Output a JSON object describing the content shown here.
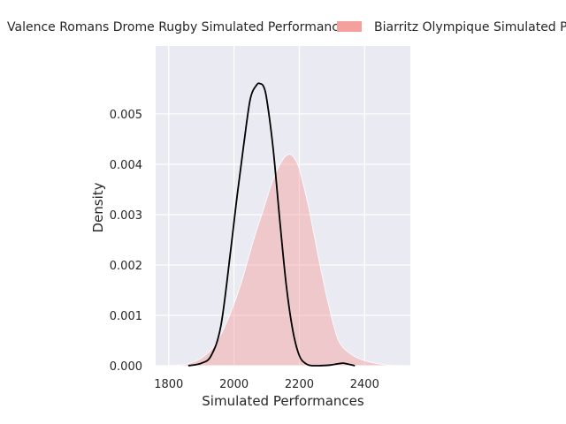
{
  "chart_data": {
    "type": "area",
    "title": "",
    "xlabel": "Simulated Performances",
    "ylabel": "Density",
    "xlim": [
      1760,
      2540
    ],
    "ylim": [
      0,
      0.00635
    ],
    "x_ticks": [
      1800,
      2000,
      2200,
      2400
    ],
    "x_tick_labels": [
      "1800",
      "2000",
      "2200",
      "2400"
    ],
    "y_ticks": [
      0,
      0.001,
      0.002,
      0.003,
      0.004,
      0.005
    ],
    "y_tick_labels": [
      "0.000",
      "0.001",
      "0.002",
      "0.003",
      "0.004",
      "0.005"
    ],
    "grid": true,
    "legend_position": "top",
    "series": [
      {
        "name": "Valence Romans Drome Rugby Simulated Performances",
        "style": "line",
        "color": "#000000",
        "x": [
          1860,
          1900,
          1930,
          1960,
          1990,
          2010,
          2030,
          2050,
          2070,
          2080,
          2090,
          2100,
          2120,
          2140,
          2160,
          2180,
          2200,
          2220,
          2240,
          2260,
          2290,
          2320,
          2335,
          2350,
          2370
        ],
        "y": [
          0.0,
          5e-05,
          0.0002,
          0.0008,
          0.0023,
          0.0034,
          0.0044,
          0.0053,
          0.00558,
          0.0056,
          0.00555,
          0.0053,
          0.0043,
          0.0029,
          0.0016,
          0.0007,
          0.0002,
          4e-05,
          0.0,
          0.0,
          1e-05,
          4e-05,
          5e-05,
          3e-05,
          0.0
        ]
      },
      {
        "name": "Biarritz Olympique Simulated Performances",
        "style": "fill",
        "color": "#f4a09c",
        "x": [
          1780,
          1820,
          1860,
          1900,
          1940,
          1980,
          2020,
          2060,
          2090,
          2120,
          2150,
          2170,
          2185,
          2200,
          2230,
          2260,
          2290,
          2320,
          2360,
          2400,
          2440,
          2480,
          2520
        ],
        "y": [
          0.0,
          1e-05,
          4e-05,
          0.00015,
          0.0004,
          0.0009,
          0.0016,
          0.0025,
          0.0031,
          0.0037,
          0.0041,
          0.0042,
          0.00412,
          0.0039,
          0.0031,
          0.0021,
          0.0012,
          0.0005,
          0.00022,
          0.0001,
          4e-05,
          1e-05,
          0.0
        ]
      }
    ]
  },
  "colors": {
    "panel_background": "#eaeaf2",
    "grid": "#ffffff",
    "text": "#262626"
  }
}
